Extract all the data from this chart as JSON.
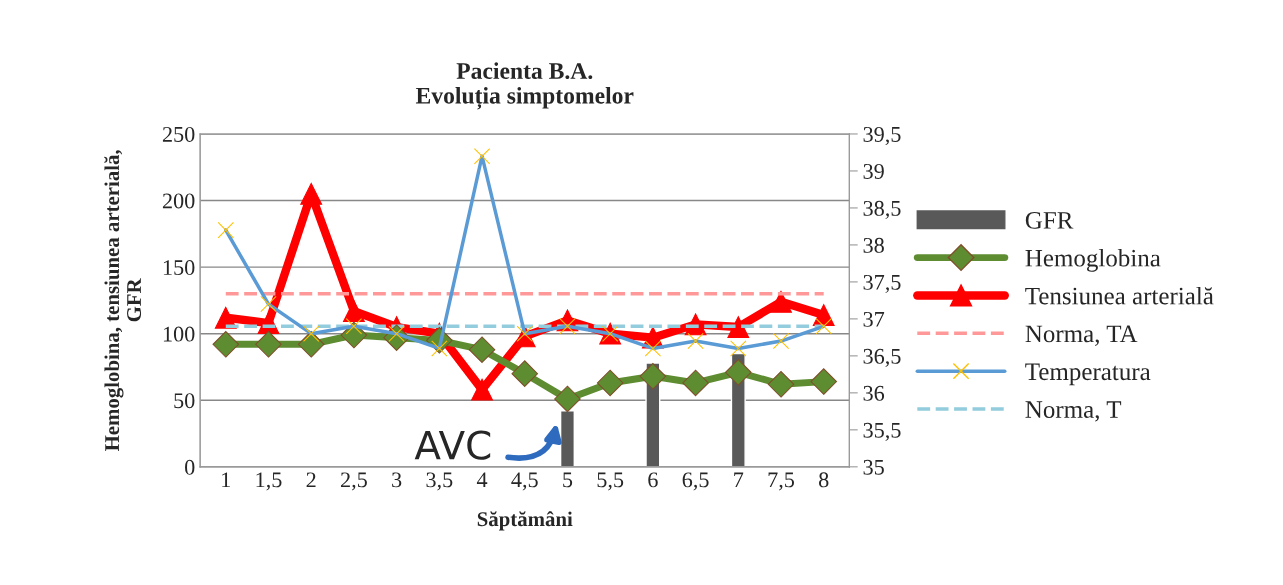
{
  "chart_data": {
    "type": "line",
    "title": "Pacienta B.A.\nEvoluția simptomelor",
    "xlabel": "Săptămâni",
    "ylabel": "Hemoglobina, tensiunea arterială,\nGFR",
    "categories": [
      "1",
      "1,5",
      "2",
      "2,5",
      "3",
      "3,5",
      "4",
      "4,5",
      "5",
      "5,5",
      "6",
      "6,5",
      "7",
      "7,5",
      "8"
    ],
    "series": [
      {
        "name": "GFR",
        "type": "bar",
        "color": "#595959",
        "values": [
          null,
          null,
          null,
          null,
          null,
          null,
          null,
          null,
          42,
          null,
          78,
          null,
          85,
          null,
          null
        ]
      },
      {
        "name": "Hemoglobina",
        "color": "#5e8c31",
        "marker": "diamond",
        "line_style": "solid",
        "values": [
          92,
          92,
          92,
          99,
          97,
          95,
          88,
          70,
          51,
          63,
          68,
          63,
          71,
          62,
          64
        ]
      },
      {
        "name": "Tensiunea arterială",
        "color": "#ff0000",
        "marker": "triangle",
        "line_style": "solid",
        "values": [
          112,
          108,
          205,
          117,
          105,
          100,
          58,
          98,
          110,
          100,
          97,
          107,
          105,
          124,
          114
        ]
      },
      {
        "name": "Norma, TA",
        "color": "#ff9999",
        "marker": "none",
        "line_style": "dashed",
        "values": [
          130,
          130,
          130,
          130,
          130,
          130,
          130,
          130,
          130,
          130,
          130,
          130,
          130,
          130,
          130
        ]
      },
      {
        "name": "Temperatura",
        "axis": "y2",
        "color": "#5b9bd5",
        "marker": "cross",
        "line_style": "solid",
        "values": [
          38.2,
          37.2,
          36.8,
          36.9,
          36.8,
          36.6,
          39.2,
          36.8,
          36.9,
          36.8,
          36.6,
          36.7,
          36.6,
          36.7,
          36.9
        ]
      },
      {
        "name": "Norma, T",
        "axis": "y2",
        "color": "#93cddd",
        "marker": "none",
        "line_style": "dashed",
        "values": [
          36.9,
          36.9,
          36.9,
          36.9,
          36.9,
          36.9,
          36.9,
          36.9,
          36.9,
          36.9,
          36.9,
          36.9,
          36.9,
          36.9,
          36.9
        ]
      }
    ],
    "ylim": [
      0,
      250
    ],
    "yticks": [
      0,
      50,
      100,
      150,
      200,
      250
    ],
    "y2lim": [
      35,
      39.5
    ],
    "y2ticks": [
      35,
      {
        "value": 35.5,
        "label": "35,5"
      },
      36,
      {
        "value": 36.5,
        "label": "36,5"
      },
      37,
      {
        "value": 37.5,
        "label": "37,5"
      },
      38,
      {
        "value": 38.5,
        "label": "38,5"
      },
      39,
      {
        "value": 39.5,
        "label": "39,5"
      }
    ],
    "grid": "y",
    "legend": "right",
    "annotations": [
      "AVC"
    ]
  }
}
